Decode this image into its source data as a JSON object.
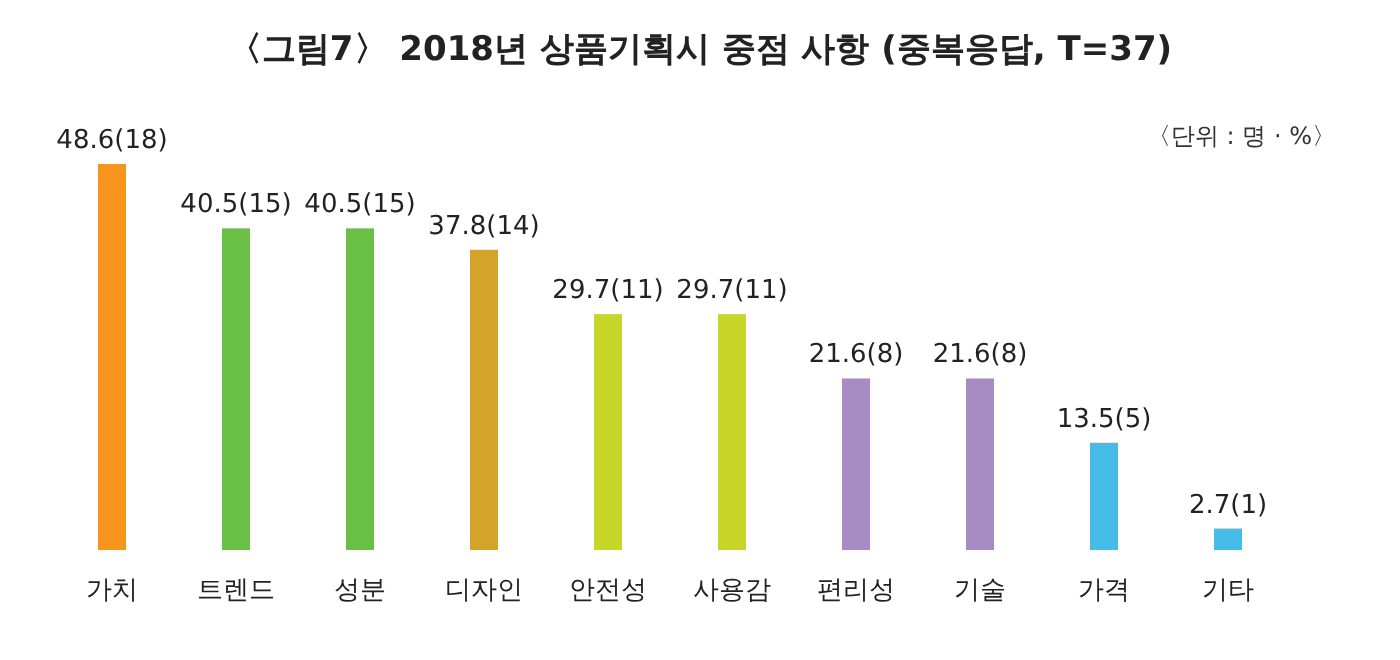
{
  "chart_data": {
    "type": "bar",
    "title": "〈그림7〉 2018년 상품기획시 중점 사항 (중복응답, T=37)",
    "annotations": [
      "〈단위 : 명 · %〉"
    ],
    "categories": [
      "가치",
      "트렌드",
      "성분",
      "디자인",
      "안전성",
      "사용감",
      "편리성",
      "기술",
      "가격",
      "기타"
    ],
    "values": [
      48.6,
      40.5,
      40.5,
      37.8,
      29.7,
      29.7,
      21.6,
      21.6,
      13.5,
      2.7
    ],
    "value_labels": [
      "48.6(18)",
      "40.5(15)",
      "40.5(15)",
      "37.8(14)",
      "29.7(11)",
      "29.7(11)",
      "21.6(8)",
      "21.6(8)",
      "13.5(5)",
      "2.7(1)"
    ],
    "colors": [
      "#f7941d",
      "#6abf45",
      "#6abf45",
      "#d4a42a",
      "#c8d62a",
      "#c8d62a",
      "#a98bc4",
      "#a98bc4",
      "#45bde8",
      "#45bde8"
    ]
  }
}
